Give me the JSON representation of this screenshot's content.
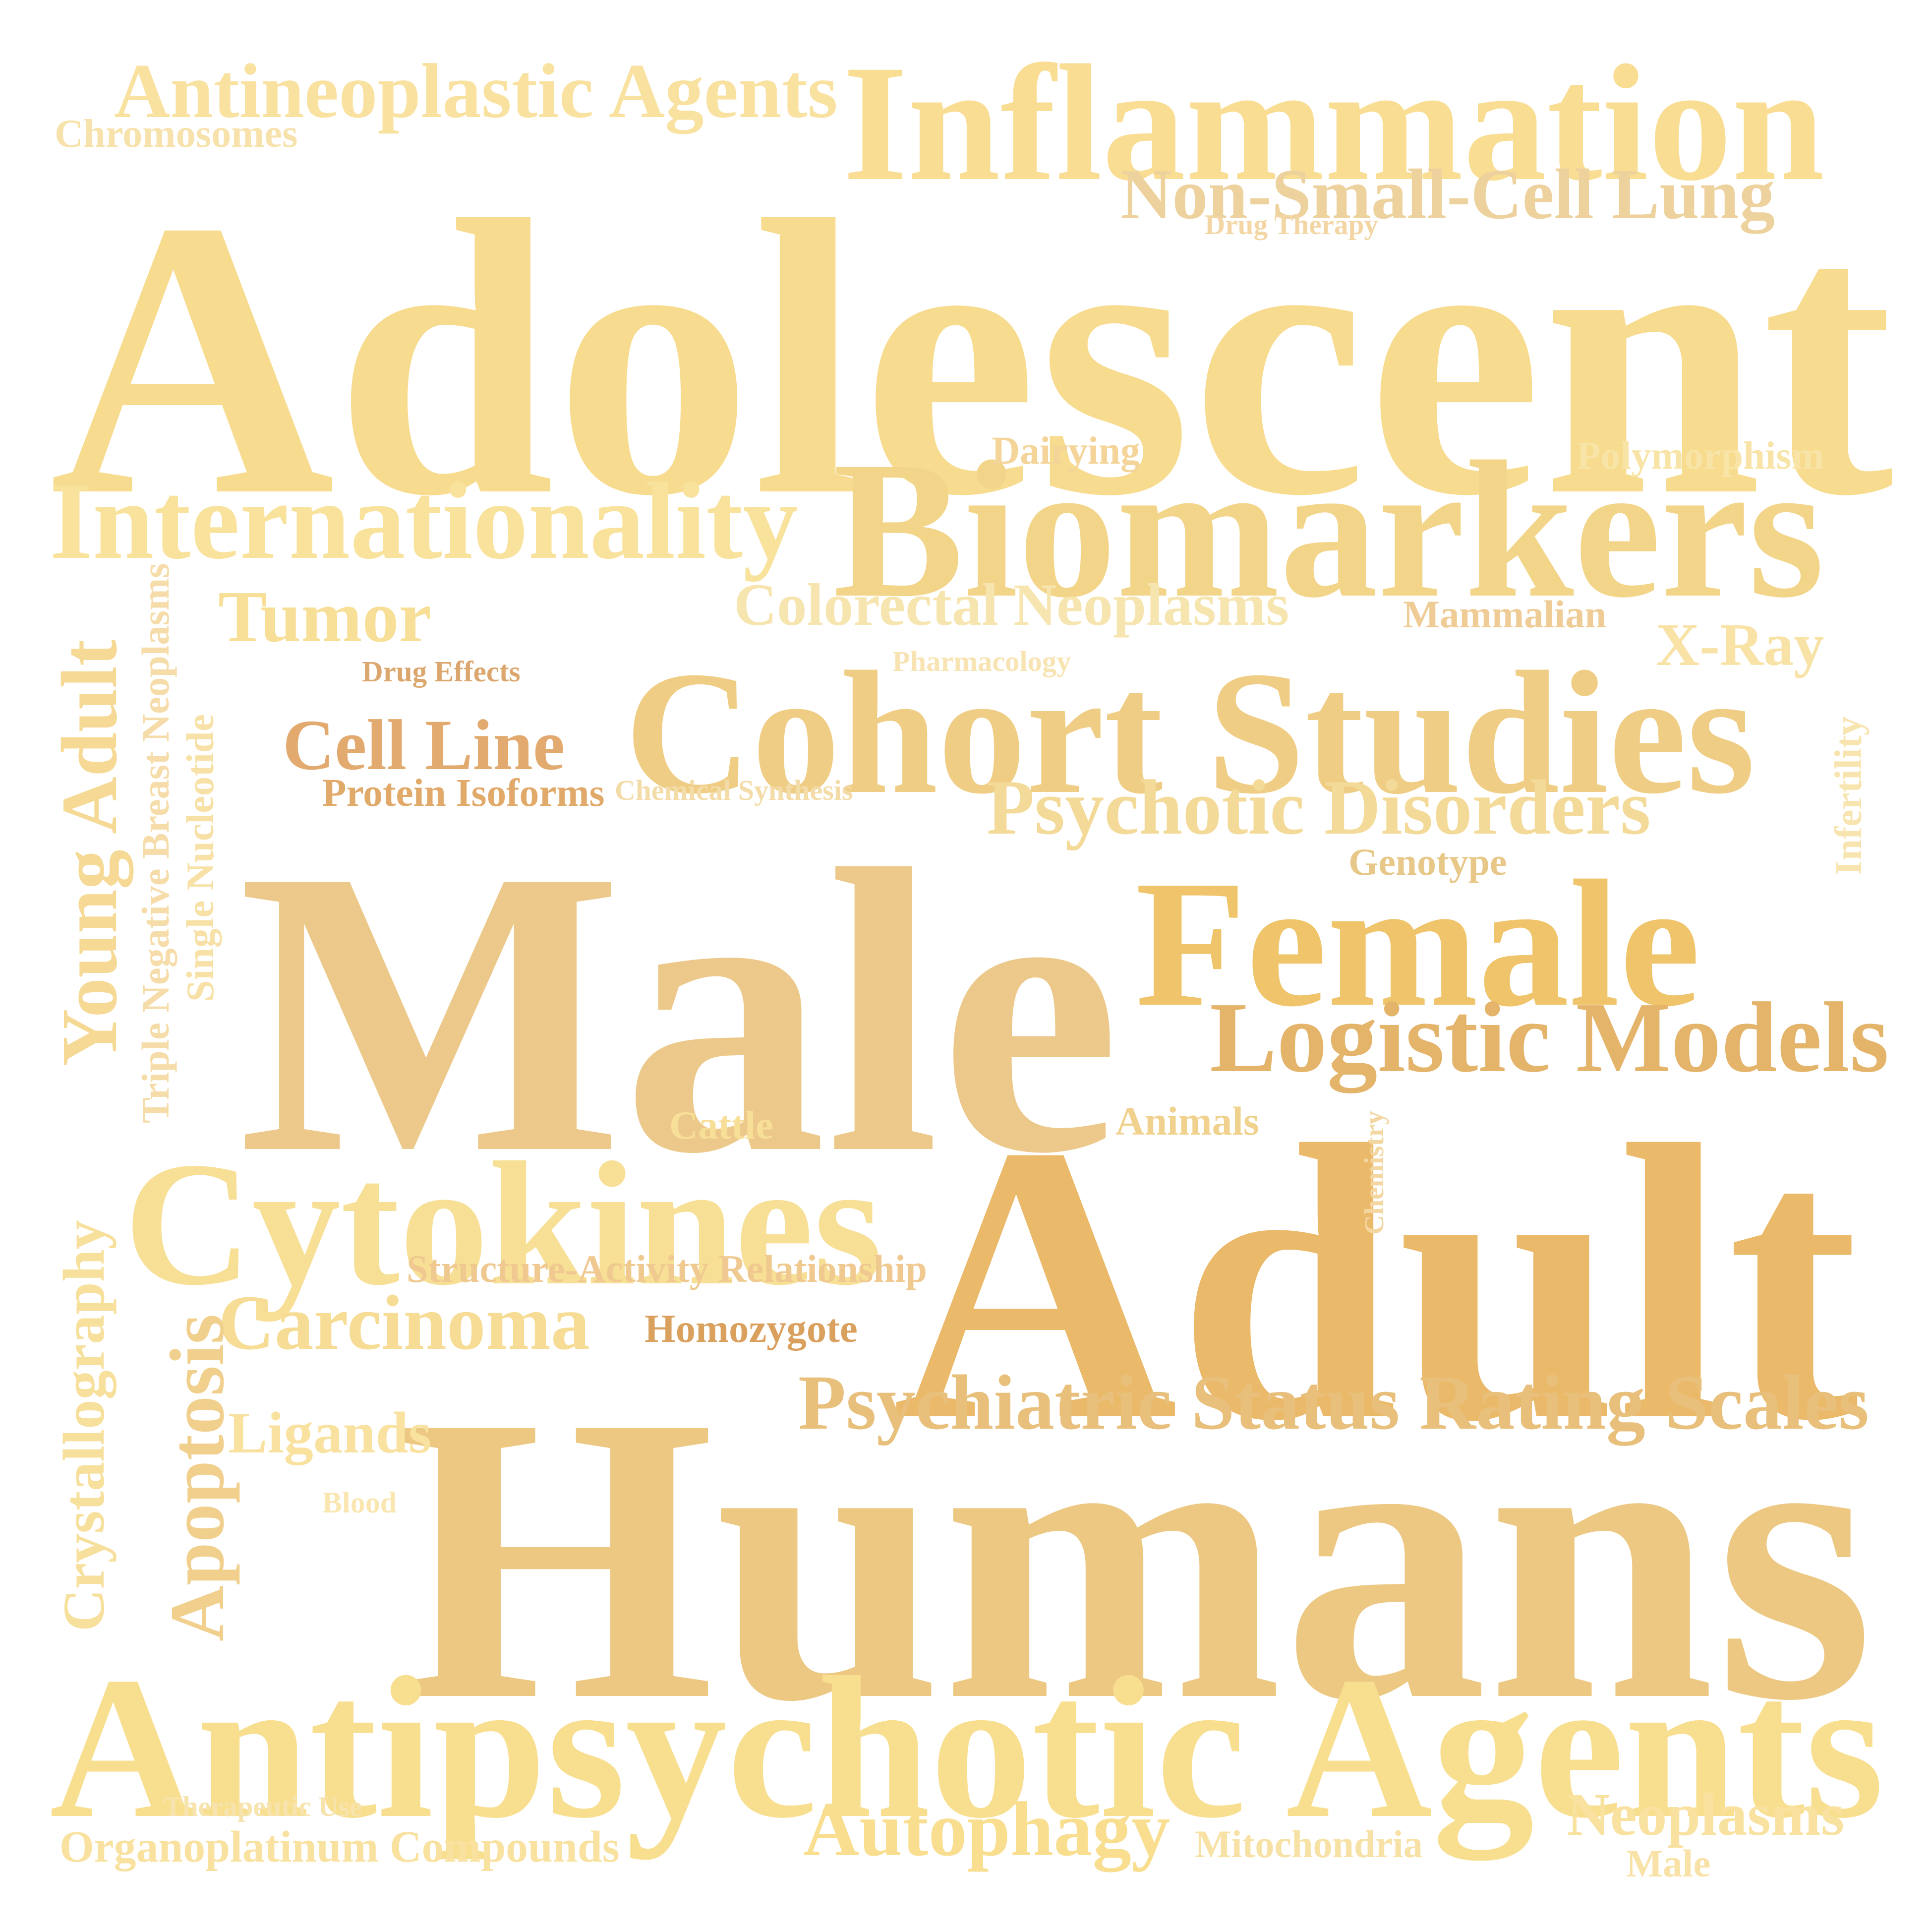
{
  "palette": {
    "background": "#ffffff",
    "light_yellow": "#f8de8e",
    "pale_yellow": "#f7e2a6",
    "tan": "#eac585",
    "gold": "#efc36c",
    "orange_tan": "#e0a862",
    "brown": "#d9a05e"
  },
  "words": {
    "adolescent": "Adolescent",
    "male_large": "Male",
    "humans": "Humans",
    "adult": "Adult",
    "antipsychotic_agents": "Antipsychotic Agents",
    "inflammation": "Inflammation",
    "biomarkers": "Biomarkers",
    "cohort_studies": "Cohort Studies",
    "cytokines": "Cytokines",
    "female": "Female",
    "internationality": "Internationality",
    "logistic_models": "Logistic Models",
    "antineoplastic_agents": "Antineoplastic Agents",
    "non_small_cell_lung": "Non-Small-Cell Lung",
    "psychiatric_status_rating_scales": "Psychiatric Status Rating Scales",
    "psychotic_disorders": "Psychotic Disorders",
    "carcinoma": "Carcinoma",
    "apoptosis": "Apoptosis",
    "young_adult": "Young Adult",
    "crystallography": "Crystallography",
    "autophagy": "Autophagy",
    "colorectal_neoplasms": "Colorectal Neoplasms",
    "tumor": "Tumor",
    "cell_line": "Cell Line",
    "ligands": "Ligands",
    "neoplasms": "Neoplasms",
    "x_ray": "X-Ray",
    "organoplatinum_compounds": "Organoplatinum Compounds",
    "structure_activity_relationship": "Structure-Activity Relationship",
    "triple_negative_breast_neoplasms": "Triple Negative Breast Neoplasms",
    "single_nucleotide": "Single Nucleotide",
    "protein_isoforms": "Protein Isoforms",
    "homozygote": "Homozygote",
    "genotype": "Genotype",
    "animals": "Animals",
    "cattle": "Cattle",
    "mammalian": "Mammalian",
    "polymorphism": "Polymorphism",
    "dairying": "Dairying",
    "mitochondria": "Mitochondria",
    "chromosomes": "Chromosomes",
    "drug_therapy": "Drug Therapy",
    "drug_effects": "Drug Effects",
    "pharmacology": "Pharmacology",
    "chemical_synthesis": "Chemical Synthesis",
    "infertility": "Infertility",
    "chemistry": "Chemistry",
    "blood": "Blood",
    "therapeutic_use": "Therapeutic Use",
    "male_small": "Male"
  }
}
